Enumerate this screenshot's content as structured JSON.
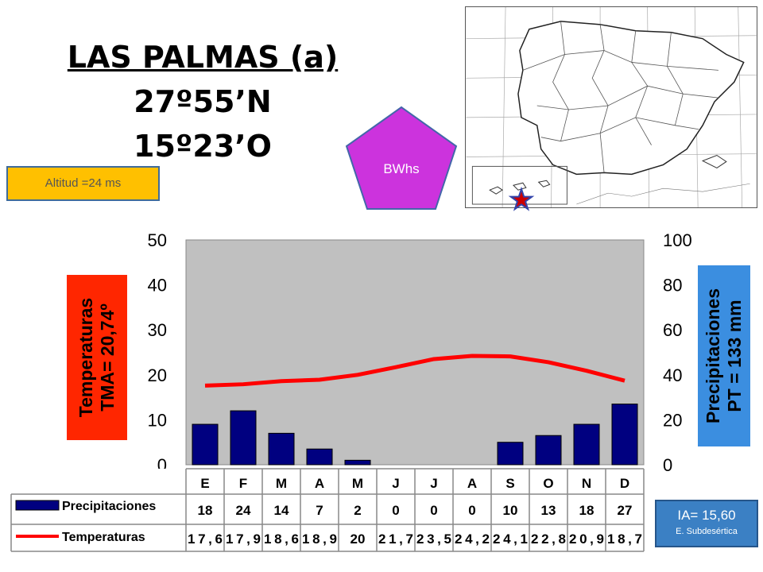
{
  "station": {
    "name": "LAS PALMAS (a)",
    "latitude": "27º55’N",
    "longitude": "15º23’O",
    "altitude": "Altitud =24 ms"
  },
  "climate_code": "BWhs",
  "temperature_label": {
    "line1": "Temperaturas",
    "line2": "TMA=  20,74º"
  },
  "precipitation_label": {
    "line1": "Precipitaciones",
    "line2": "PT = 133 mm"
  },
  "aridity": {
    "value": "IA= 15,60",
    "type": "E. Subdesértica"
  },
  "table": {
    "precip_row_label": "Precipitaciones",
    "temp_row_label": "Temperaturas",
    "precip_text": [
      "18",
      "24",
      "14",
      "7",
      "2",
      "0",
      "0",
      "0",
      "10",
      "13",
      "18",
      "27"
    ],
    "temp_text": [
      "17,6",
      "17,9",
      "18,6",
      "18,9",
      "20",
      "21,7",
      "23,5",
      "24,2",
      "24,1",
      "22,8",
      "20,9",
      "18,7"
    ]
  },
  "colors": {
    "bars": "#000080",
    "temp_line": "#ff0000",
    "plot_bg": "#c0c0c0",
    "pentagon": "#cc33dd"
  },
  "chart_data": {
    "type": "bar",
    "categories": [
      "E",
      "F",
      "M",
      "A",
      "M",
      "J",
      "J",
      "A",
      "S",
      "O",
      "N",
      "D"
    ],
    "series": [
      {
        "name": "Precipitaciones",
        "type": "bar",
        "axis": "right",
        "values": [
          18,
          24,
          14,
          7,
          2,
          0,
          0,
          0,
          10,
          13,
          18,
          27
        ]
      },
      {
        "name": "Temperaturas",
        "type": "line",
        "axis": "left",
        "values": [
          17.6,
          17.9,
          18.6,
          18.9,
          20,
          21.7,
          23.5,
          24.2,
          24.1,
          22.8,
          20.9,
          18.7
        ]
      }
    ],
    "ylim_left": [
      0,
      50
    ],
    "yticks_left": [
      "0",
      "10",
      "20",
      "30",
      "40",
      "50"
    ],
    "ylim_right": [
      0,
      100
    ],
    "yticks_right": [
      "0",
      "20",
      "40",
      "60",
      "80",
      "100"
    ],
    "grid": false
  }
}
